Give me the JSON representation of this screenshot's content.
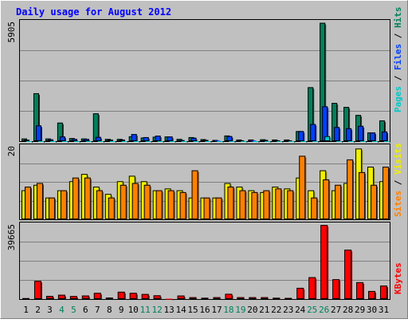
{
  "chart_data": [
    {
      "type": "bar",
      "title": "Daily usage for August 2012",
      "ylabel_parts": [
        "Pages",
        "Files",
        "Hits"
      ],
      "ylabel_separator": " / ",
      "ymax_label": "5905",
      "ylim": [
        0,
        5905
      ],
      "categories": [
        "1",
        "2",
        "3",
        "4",
        "5",
        "6",
        "7",
        "8",
        "9",
        "10",
        "11",
        "12",
        "13",
        "14",
        "15",
        "16",
        "17",
        "18",
        "19",
        "20",
        "21",
        "22",
        "23",
        "24",
        "25",
        "26",
        "27",
        "28",
        "29",
        "30",
        "31"
      ],
      "weekend_days": [
        "4",
        "5",
        "11",
        "12",
        "18",
        "19",
        "25",
        "26"
      ],
      "series": [
        {
          "name": "Hits",
          "values": [
            130,
            2380,
            130,
            920,
            150,
            130,
            1380,
            110,
            110,
            240,
            180,
            220,
            230,
            110,
            200,
            100,
            60,
            280,
            80,
            80,
            90,
            80,
            80,
            500,
            2680,
            5880,
            1900,
            1700,
            1300,
            430,
            1030
          ]
        },
        {
          "name": "Files",
          "values": [
            70,
            780,
            90,
            230,
            110,
            110,
            210,
            80,
            80,
            350,
            200,
            270,
            230,
            50,
            170,
            60,
            30,
            250,
            40,
            30,
            60,
            40,
            40,
            500,
            850,
            1730,
            700,
            640,
            760,
            430,
            480
          ]
        },
        {
          "name": "Pages",
          "values": [
            0,
            0,
            0,
            0,
            0,
            0,
            0,
            0,
            0,
            0,
            0,
            0,
            0,
            0,
            0,
            0,
            0,
            0,
            0,
            0,
            0,
            0,
            0,
            0,
            0,
            250,
            0,
            0,
            0,
            0,
            0
          ]
        }
      ],
      "colors": {
        "Hits": "#00805c",
        "Files": "#0040ff",
        "Pages": "#00c8c8"
      }
    },
    {
      "type": "bar",
      "ylabel_parts": [
        "Sites",
        "Visits"
      ],
      "ylabel_separator": " / ",
      "ymax_label": "20",
      "ylim": [
        0,
        20
      ],
      "categories": [
        "1",
        "2",
        "3",
        "4",
        "5",
        "6",
        "7",
        "8",
        "9",
        "10",
        "11",
        "12",
        "13",
        "14",
        "15",
        "16",
        "17",
        "18",
        "19",
        "20",
        "21",
        "22",
        "23",
        "24",
        "25",
        "26",
        "27",
        "28",
        "29",
        "30",
        "31"
      ],
      "series": [
        {
          "name": "Visits",
          "values": [
            8,
            9.5,
            6,
            8,
            10.5,
            12.5,
            9,
            7,
            10.5,
            12,
            10.5,
            8,
            8.5,
            8,
            6,
            6,
            6,
            10,
            9,
            8,
            7.5,
            9,
            8.5,
            11.5,
            8,
            13.5,
            8,
            10,
            19.5,
            14.5,
            10.5
          ]
        },
        {
          "name": "Sites",
          "values": [
            9,
            10,
            6,
            8,
            11.5,
            11.5,
            8,
            6,
            9.5,
            10,
            9.5,
            8,
            8,
            7.5,
            13.5,
            6,
            6,
            9,
            8,
            7.5,
            8,
            8.5,
            8,
            17.5,
            6,
            11,
            9.5,
            16.5,
            13,
            9.5,
            14.5
          ]
        }
      ],
      "colors": {
        "Visits": "#f0f000",
        "Sites": "#ff8000"
      }
    },
    {
      "type": "bar",
      "ylabel_parts": [
        "KBytes"
      ],
      "ylabel_separator": "",
      "ymax_label": "39665",
      "ylim": [
        0,
        39665
      ],
      "categories": [
        "1",
        "2",
        "3",
        "4",
        "5",
        "6",
        "7",
        "8",
        "9",
        "10",
        "11",
        "12",
        "13",
        "14",
        "15",
        "16",
        "17",
        "18",
        "19",
        "20",
        "21",
        "22",
        "23",
        "24",
        "25",
        "26",
        "27",
        "28",
        "29",
        "30",
        "31"
      ],
      "series": [
        {
          "name": "KBytes",
          "values": [
            500,
            9700,
            1700,
            2300,
            1600,
            1900,
            3300,
            800,
            3900,
            3300,
            2700,
            2000,
            200,
            1900,
            1000,
            700,
            1000,
            2800,
            1000,
            1000,
            1000,
            700,
            600,
            6000,
            11700,
            39600,
            10600,
            26400,
            9000,
            4300,
            7200
          ]
        }
      ],
      "colors": {
        "KBytes": "#ff0000"
      }
    }
  ]
}
